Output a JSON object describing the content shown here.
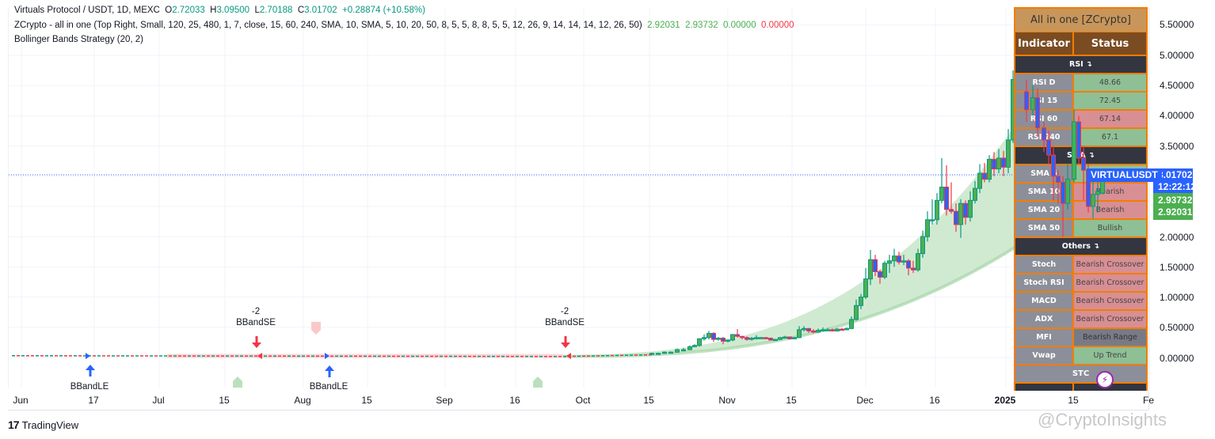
{
  "header": {
    "symbol_line": {
      "title": "Virtuals Protocol / USDT, 1D, MEXC",
      "open_label": "O",
      "open": "2.72033",
      "high_label": "H",
      "high": "3.09500",
      "low_label": "L",
      "low": "2.70188",
      "close_label": "C",
      "close": "3.01702",
      "change": "+0.28874 (+10.58%)"
    },
    "indicator_1": {
      "name": "ZCrypto - all in one (Top Right, Small, 120, 25, 480, 1, 7, close, 15, 60, 240, SMA, 10, SMA, 5, 10, 20, 50, 8, 5, 5, 8, 8, 5, 5, 12, 26, 9, 14, 14, 14, 12, 26, 50)",
      "values": [
        "2.92031",
        "2.93732",
        "0.00000",
        "0.00000"
      ]
    },
    "indicator_2": {
      "name": "Bollinger Bands Strategy (20, 2)"
    }
  },
  "price_axis": {
    "labels": [
      "5.50000",
      "5.00000",
      "4.50000",
      "4.00000",
      "3.50000",
      "2.00000",
      "1.50000",
      "1.00000",
      "0.50000",
      "0.00000"
    ],
    "last_price": "3.01702",
    "countdown": "12:22:12",
    "ma_values": [
      "2.93732",
      "2.92031"
    ],
    "symbol_tag": "VIRTUALUSDT"
  },
  "time_axis": {
    "labels": [
      "Jun",
      "17",
      "Jul",
      "15",
      "Aug",
      "15",
      "Sep",
      "16",
      "Oct",
      "15",
      "Nov",
      "15",
      "Dec",
      "16",
      "2025",
      "15",
      "Fe"
    ]
  },
  "signals": [
    {
      "type": "BBandLE",
      "label": "BBandLE",
      "qty": ""
    },
    {
      "type": "BBandSE",
      "label": "BBandSE",
      "qty": "-2"
    },
    {
      "type": "BBandLE",
      "label": "BBandLE",
      "qty": ""
    },
    {
      "type": "BBandSE",
      "label": "BBandSE",
      "qty": "-2"
    }
  ],
  "table": {
    "title": "All in one [ZCrypto]",
    "col_indicator": "Indicator",
    "col_status": "Status",
    "sections": {
      "rsi": "RSI ↴",
      "sma": "SMA ↴",
      "others": "Others ↴",
      "stc": "STC"
    },
    "rsi_rows": [
      {
        "name": "RSI D",
        "status": "48.66",
        "tone": "green"
      },
      {
        "name": "RSI 15",
        "status": "72.45",
        "tone": "green"
      },
      {
        "name": "RSI 60",
        "status": "67.14",
        "tone": "red"
      },
      {
        "name": "RSI 240",
        "status": "67.1",
        "tone": "green"
      }
    ],
    "sma_rows": [
      {
        "name": "SMA 5",
        "status": "",
        "tone": "green"
      },
      {
        "name": "SMA 10",
        "status": "Bearish",
        "tone": "red"
      },
      {
        "name": "SMA 20",
        "status": "Bearish",
        "tone": "red"
      },
      {
        "name": "SMA 50",
        "status": "Bullish",
        "tone": "green"
      }
    ],
    "other_rows": [
      {
        "name": "Stoch",
        "status": "Bearish Crossover",
        "tone": "red"
      },
      {
        "name": "Stoch RSI",
        "status": "Bearish Crossover",
        "tone": "red"
      },
      {
        "name": "MACD",
        "status": "Bearish Crossover",
        "tone": "red"
      },
      {
        "name": "ADX",
        "status": "Bearish Crossover",
        "tone": "red"
      },
      {
        "name": "MFI",
        "status": "Bearish Range",
        "tone": "gray"
      },
      {
        "name": "Vwap",
        "status": "Up Trend",
        "tone": "green"
      }
    ]
  },
  "footer": {
    "logo_mark": "17",
    "logo_text": "TradingView",
    "watermark": "@CryptoInsights"
  },
  "colors": {
    "bull_body": "#4caf50",
    "bull_border": "#089981",
    "bear_body": "#2962ff",
    "bear_border": "#f23645",
    "band_fill": "#c8e6c9",
    "table_border": "#f57c00",
    "last_price": "#2962ff"
  },
  "chart_data": {
    "type": "candlestick",
    "title": "Virtuals Protocol / USDT, 1D, MEXC",
    "xlabel": "",
    "ylabel": "",
    "ylim": [
      -0.1,
      5.7
    ],
    "y_ticks": [
      0.0,
      0.5,
      1.0,
      1.5,
      2.0,
      3.5,
      4.0,
      4.5,
      5.0,
      5.5
    ],
    "x_ticks": [
      "Jun",
      "17",
      "Jul",
      "15",
      "Aug",
      "15",
      "Sep",
      "16",
      "Oct",
      "15",
      "Nov",
      "15",
      "Dec",
      "16",
      "2025",
      "15",
      "Fe"
    ],
    "grid": true,
    "last": {
      "open": 2.72033,
      "high": 3.095,
      "low": 2.70188,
      "close": 3.01702,
      "change": 0.28874,
      "change_pct": 10.58
    },
    "approx_close_series": {
      "x": [
        "Jun",
        "17",
        "Jul",
        "15",
        "Aug",
        "15",
        "Sep",
        "16",
        "Oct",
        "15",
        "Nov",
        "15",
        "Dec",
        "16",
        "2025",
        "15"
      ],
      "values": [
        0.03,
        0.02,
        0.01,
        0.01,
        0.02,
        0.02,
        0.02,
        0.02,
        0.04,
        0.08,
        0.5,
        0.45,
        1.3,
        3.0,
        4.6,
        3.0
      ]
    },
    "annotations": [
      "BBandLE",
      "-2 BBandSE",
      "BBandLE",
      "-2 BBandSE"
    ]
  }
}
